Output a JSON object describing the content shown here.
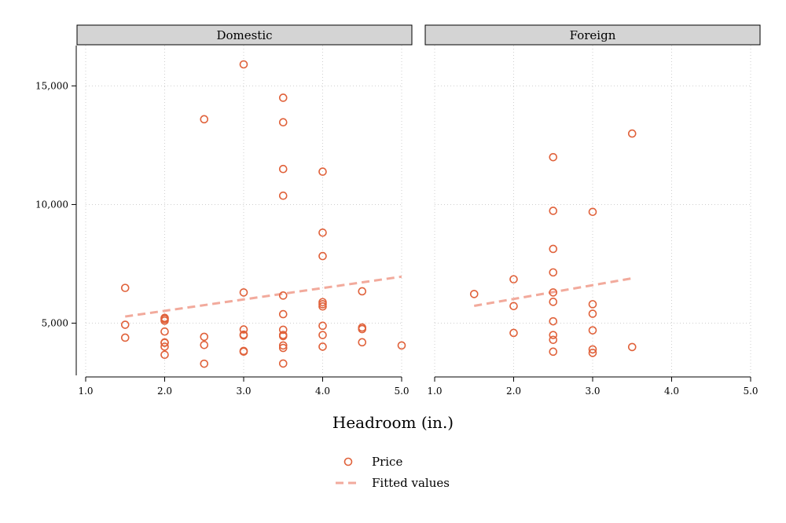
{
  "chart_data": {
    "type": "scatter",
    "xlabel": "Headroom (in.)",
    "x_ticks": [
      "1.0",
      "2.0",
      "3.0",
      "4.0",
      "5.0"
    ],
    "x_tick_values": [
      1,
      2,
      3,
      4,
      5
    ],
    "y_ticks": [
      "5,000",
      "10,000",
      "15,000"
    ],
    "y_tick_values": [
      5000,
      10000,
      15000
    ],
    "xlim": [
      1,
      5
    ],
    "ylim": [
      2800,
      16700
    ],
    "grid": true,
    "legend_position": "bottom",
    "legend": [
      {
        "label": "Price",
        "style": "marker"
      },
      {
        "label": "Fitted values",
        "style": "dashed-line"
      }
    ],
    "colors": {
      "price": "#e0613a",
      "fitted": "#f2aa9c",
      "strip": "#d4d4d4"
    },
    "panels": [
      {
        "title": "Domestic",
        "points": [
          [
            1.5,
            6486
          ],
          [
            1.5,
            4934
          ],
          [
            1.5,
            4389
          ],
          [
            2.0,
            5222
          ],
          [
            2.0,
            5172
          ],
          [
            2.0,
            5104
          ],
          [
            2.0,
            4647
          ],
          [
            2.0,
            4187
          ],
          [
            2.0,
            4172
          ],
          [
            2.0,
            4010
          ],
          [
            2.0,
            3667
          ],
          [
            2.5,
            13594
          ],
          [
            2.5,
            4424
          ],
          [
            2.5,
            4082
          ],
          [
            2.5,
            3291
          ],
          [
            3.0,
            15906
          ],
          [
            3.0,
            6295
          ],
          [
            3.0,
            4733
          ],
          [
            3.0,
            4516
          ],
          [
            3.0,
            4482
          ],
          [
            3.0,
            3829
          ],
          [
            3.0,
            3799
          ],
          [
            3.5,
            14500
          ],
          [
            3.5,
            13466
          ],
          [
            3.5,
            11497
          ],
          [
            3.5,
            10372
          ],
          [
            3.5,
            6165
          ],
          [
            3.5,
            5379
          ],
          [
            3.5,
            4723
          ],
          [
            3.5,
            4504
          ],
          [
            3.5,
            4453
          ],
          [
            3.5,
            4060
          ],
          [
            3.5,
            3955
          ],
          [
            3.5,
            3299
          ],
          [
            4.0,
            11385
          ],
          [
            4.0,
            8814
          ],
          [
            4.0,
            7827
          ],
          [
            4.0,
            5886
          ],
          [
            4.0,
            5798
          ],
          [
            4.0,
            5705
          ],
          [
            4.0,
            4890
          ],
          [
            4.0,
            4499
          ],
          [
            4.0,
            4010
          ],
          [
            4.5,
            6342
          ],
          [
            4.5,
            4816
          ],
          [
            4.5,
            4749
          ],
          [
            4.5,
            4195
          ],
          [
            5.0,
            4060
          ]
        ],
        "fit": {
          "x": [
            1.5,
            5.0
          ],
          "y": [
            5280,
            6960
          ]
        }
      },
      {
        "title": "Foreign",
        "points": [
          [
            1.5,
            6229
          ],
          [
            2.0,
            6850
          ],
          [
            2.0,
            5719
          ],
          [
            2.0,
            4589
          ],
          [
            2.5,
            11995
          ],
          [
            2.5,
            9735
          ],
          [
            2.5,
            8129
          ],
          [
            2.5,
            7140
          ],
          [
            2.5,
            6295
          ],
          [
            2.5,
            5899
          ],
          [
            2.5,
            5079
          ],
          [
            2.5,
            4499
          ],
          [
            2.5,
            4296
          ],
          [
            2.5,
            3798
          ],
          [
            3.0,
            9690
          ],
          [
            3.0,
            5799
          ],
          [
            3.0,
            5397
          ],
          [
            3.0,
            4697
          ],
          [
            3.0,
            3895
          ],
          [
            3.0,
            3748
          ],
          [
            3.5,
            12990
          ],
          [
            3.5,
            3995
          ]
        ],
        "fit": {
          "x": [
            1.5,
            3.5
          ],
          "y": [
            5730,
            6890
          ]
        }
      }
    ]
  }
}
